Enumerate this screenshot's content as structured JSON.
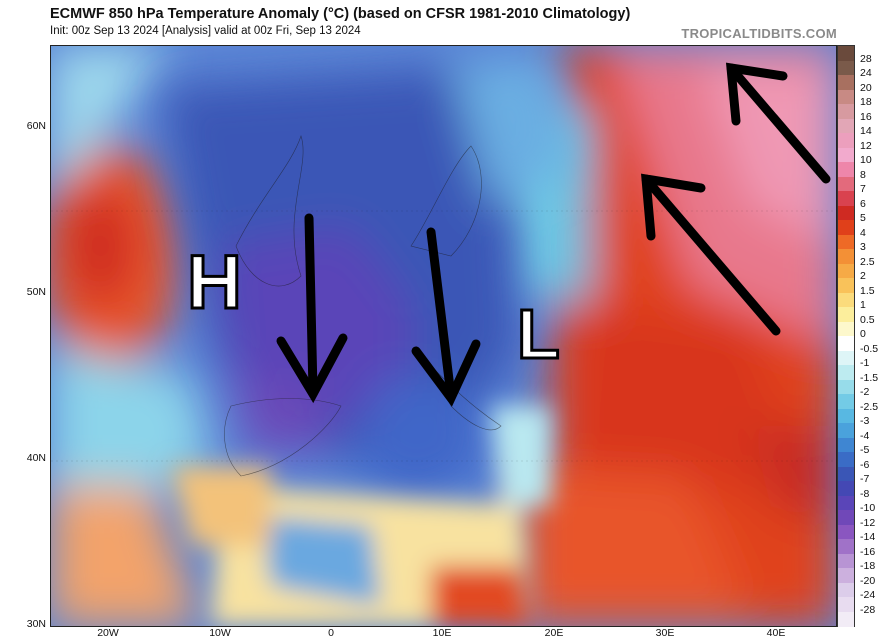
{
  "header": {
    "title": "ECMWF 850 hPa Temperature Anomaly (°C) (based on CFSR 1981-2010 Climatology)",
    "subtitle": "Init: 00z Sep 13 2024   [Analysis]   valid at 00z Fri, Sep 13 2024",
    "site": "TROPICALTIDBITS.COM"
  },
  "latitude_labels": [
    "60N",
    "50N",
    "40N",
    "30N"
  ],
  "longitude_labels": [
    "20W",
    "10W",
    "0",
    "10E",
    "20E",
    "30E",
    "40E"
  ],
  "annotations": {
    "high": "H",
    "low": "L"
  },
  "colorbar": {
    "labels": [
      "28",
      "24",
      "20",
      "18",
      "16",
      "14",
      "12",
      "10",
      "8",
      "7",
      "6",
      "5",
      "4",
      "3",
      "2.5",
      "2",
      "1.5",
      "1",
      "0.5",
      "0",
      "-0.5",
      "-1",
      "-1.5",
      "-2",
      "-2.5",
      "-3",
      "-4",
      "-5",
      "-6",
      "-7",
      "-8",
      "-10",
      "-12",
      "-14",
      "-16",
      "-18",
      "-20",
      "-24",
      "-28"
    ],
    "colors": [
      "#7a5a4a",
      "#a87060",
      "#c88a84",
      "#d79aa0",
      "#e2a6b6",
      "#ec9fbd",
      "#f2aacd",
      "#ee86aa",
      "#e36a7c",
      "#d9424f",
      "#cf2a22",
      "#e0401a",
      "#ee6a26",
      "#f39036",
      "#f6aa46",
      "#f9c25a",
      "#fbdb7c",
      "#fcee9c",
      "#fdf8cc",
      "#ffffff",
      "#def5f7",
      "#bdebf0",
      "#97dcea",
      "#73cbe6",
      "#58b8e2",
      "#4aa2dc",
      "#3f86d2",
      "#3a6cc6",
      "#3a56b6",
      "#4448b4",
      "#5a45b8",
      "#7048b8",
      "#8a56c0",
      "#a072c8",
      "#b894d4",
      "#ccb0de",
      "#dccdea",
      "#e8dcf0",
      "#f2ecf6"
    ]
  },
  "arrows": [
    "arrow-down-uk",
    "arrow-down-alps",
    "arrow-ne-russia",
    "arrow-nw-north-russia"
  ]
}
